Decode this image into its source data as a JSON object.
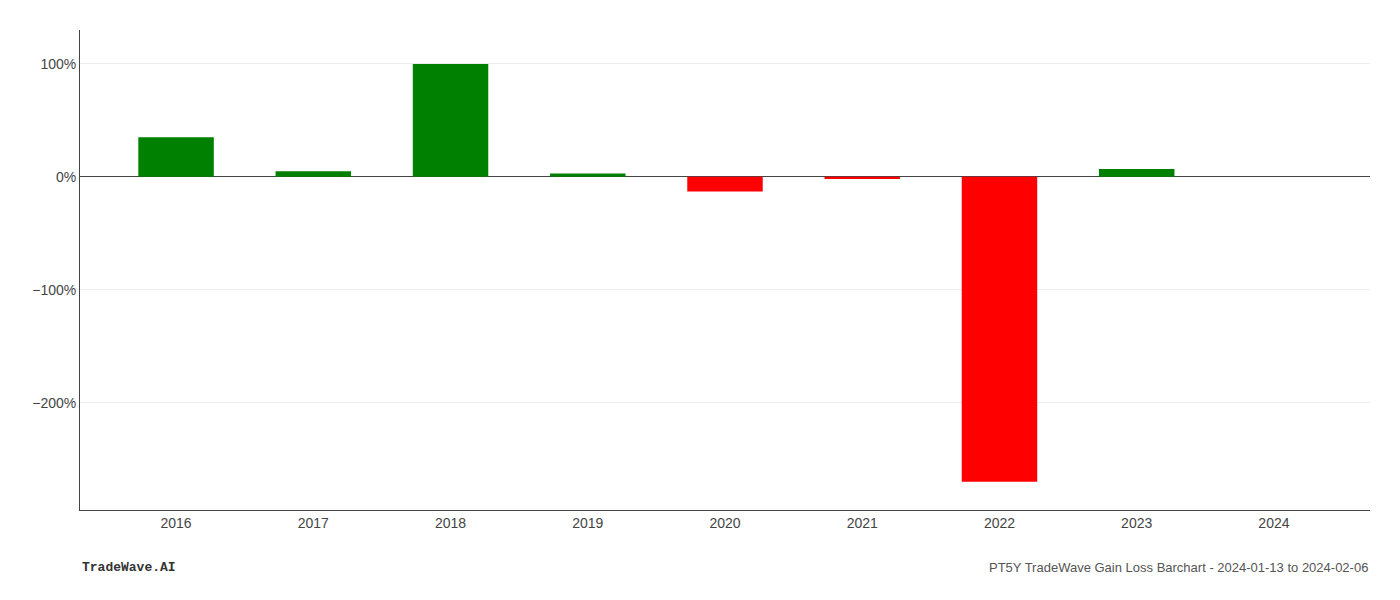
{
  "chart_data": {
    "type": "bar",
    "x": [
      2016,
      2017,
      2018,
      2019,
      2020,
      2021,
      2022,
      2023,
      2024
    ],
    "values": [
      35.0,
      5.0,
      100.0,
      3.0,
      -13.0,
      -2.0,
      -270.0,
      7.0,
      0.0
    ],
    "colors": [
      "#008000",
      "#008000",
      "#008000",
      "#008000",
      "#ff0000",
      "#ff0000",
      "#ff0000",
      "#008000",
      "#008000"
    ],
    "xlim": [
      2015.3,
      2024.7
    ],
    "xticks": [
      2016,
      2017,
      2018,
      2019,
      2020,
      2021,
      2022,
      2023,
      2024
    ],
    "ylim": [
      -295,
      130
    ],
    "yticks": [
      {
        "value": 100,
        "label": "100%"
      },
      {
        "value": 0,
        "label": "0%"
      },
      {
        "value": -100,
        "label": "−100%"
      },
      {
        "value": -200,
        "label": "−200%"
      }
    ],
    "grid": true,
    "annotations": [
      "TradeWave.AI",
      "PT5Y TradeWave Gain Loss Barchart - 2024-01-13 to 2024-02-06"
    ]
  }
}
